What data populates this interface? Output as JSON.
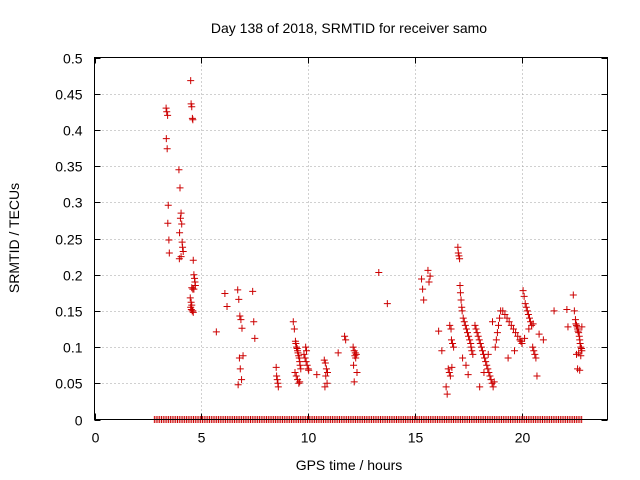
{
  "chart_data": {
    "type": "scatter",
    "title": "Day 138 of 2018, SRMTID for receiver samo",
    "xlabel": "GPS time / hours",
    "ylabel": "SRMTID / TECUs",
    "xlim": [
      0,
      24
    ],
    "ylim": [
      0,
      0.5
    ],
    "x_ticks": [
      0,
      5,
      10,
      15,
      20
    ],
    "x_tick_labels": [
      "0",
      "5",
      "10",
      "15",
      "20"
    ],
    "y_ticks": [
      0,
      0.05,
      0.1,
      0.15,
      0.2,
      0.25,
      0.3,
      0.35,
      0.4,
      0.45,
      0.5
    ],
    "y_tick_labels": [
      "0",
      "0.05",
      "0.1",
      "0.15",
      "0.2",
      "0.25",
      "0.3",
      "0.35",
      "0.4",
      "0.45",
      "0.5"
    ],
    "grid": true,
    "legend": "none",
    "marker": "+",
    "marker_color": "#cc0000",
    "series": [
      {
        "name": "SRMTID",
        "x": [
          3.35,
          3.38,
          3.42,
          3.36,
          3.4,
          3.45,
          3.43,
          3.48,
          3.5,
          3.95,
          4.0,
          4.05,
          4.02,
          4.08,
          3.98,
          4.1,
          4.12,
          4.15,
          3.97,
          4.05,
          4.5,
          4.52,
          4.55,
          4.58,
          4.6,
          4.62,
          4.65,
          4.68,
          4.7,
          4.72,
          4.55,
          4.6,
          4.48,
          4.52,
          4.55,
          4.5,
          4.53,
          4.57,
          4.6,
          4.62,
          4.65,
          5.7,
          6.1,
          6.2,
          6.7,
          6.75,
          6.8,
          6.85,
          6.9,
          6.95,
          6.78,
          6.82,
          6.88,
          6.72,
          7.4,
          7.45,
          7.5,
          8.5,
          8.52,
          8.55,
          8.58,
          8.6,
          9.3,
          9.35,
          9.4,
          9.42,
          9.45,
          9.48,
          9.5,
          9.52,
          9.55,
          9.58,
          9.6,
          9.62,
          9.65,
          9.38,
          9.44,
          9.5,
          9.56,
          9.6,
          9.8,
          9.85,
          9.9,
          9.95,
          10.0,
          10.02,
          9.88,
          9.92,
          10.4,
          10.75,
          10.8,
          10.85,
          10.9,
          10.82,
          10.88,
          10.78,
          11.4,
          11.7,
          11.75,
          12.1,
          12.15,
          12.2,
          12.25,
          12.18,
          12.22,
          12.12,
          12.28,
          12.15,
          13.3,
          13.7,
          15.3,
          15.35,
          15.4,
          15.6,
          15.7,
          15.65,
          16.1,
          16.25,
          16.45,
          16.5,
          16.55,
          16.6,
          16.65,
          16.7,
          16.75,
          16.8,
          16.62,
          16.68,
          16.72,
          17.0,
          17.02,
          17.05,
          17.08,
          17.1,
          17.12,
          17.15,
          17.18,
          17.2,
          17.25,
          17.3,
          17.35,
          17.4,
          17.45,
          17.5,
          17.55,
          17.6,
          17.62,
          17.65,
          17.7,
          17.22,
          17.38,
          17.48,
          17.8,
          17.85,
          17.9,
          17.95,
          18.0,
          18.05,
          18.1,
          18.15,
          18.2,
          18.25,
          18.3,
          18.35,
          18.4,
          18.45,
          18.5,
          18.55,
          18.6,
          18.65,
          18.7,
          18.75,
          18.8,
          18.85,
          18.9,
          18.95,
          19.0,
          18.02,
          18.22,
          18.42,
          18.62,
          19.1,
          19.2,
          19.3,
          19.4,
          19.5,
          19.6,
          19.7,
          19.8,
          19.9,
          20.0,
          20.05,
          20.1,
          20.15,
          20.2,
          20.25,
          20.3,
          20.35,
          20.4,
          20.45,
          20.5,
          20.55,
          20.6,
          20.65,
          20.7,
          20.8,
          19.35,
          19.65,
          19.95,
          20.12,
          20.32,
          20.52,
          21.0,
          21.5,
          22.1,
          22.15,
          22.4,
          22.45,
          22.5,
          22.52,
          22.55,
          22.58,
          22.6,
          22.62,
          22.65,
          22.68,
          22.7,
          22.72,
          22.75,
          22.78,
          22.8,
          22.55,
          22.65,
          22.75,
          22.6,
          22.7,
          22.8
        ],
        "y": [
          0.43,
          0.425,
          0.42,
          0.388,
          0.374,
          0.296,
          0.271,
          0.248,
          0.23,
          0.345,
          0.32,
          0.285,
          0.278,
          0.27,
          0.258,
          0.245,
          0.238,
          0.232,
          0.222,
          0.225,
          0.468,
          0.436,
          0.432,
          0.416,
          0.414,
          0.22,
          0.2,
          0.195,
          0.19,
          0.185,
          0.182,
          0.18,
          0.168,
          0.162,
          0.158,
          0.155,
          0.152,
          0.15,
          0.15,
          0.148,
          0.18,
          0.121,
          0.174,
          0.156,
          0.179,
          0.166,
          0.143,
          0.138,
          0.126,
          0.088,
          0.085,
          0.07,
          0.055,
          0.048,
          0.177,
          0.135,
          0.112,
          0.072,
          0.06,
          0.055,
          0.05,
          0.045,
          0.135,
          0.125,
          0.108,
          0.105,
          0.1,
          0.098,
          0.095,
          0.092,
          0.088,
          0.085,
          0.08,
          0.075,
          0.07,
          0.065,
          0.06,
          0.055,
          0.05,
          0.052,
          0.09,
          0.085,
          0.08,
          0.075,
          0.07,
          0.068,
          0.1,
          0.095,
          0.062,
          0.082,
          0.078,
          0.07,
          0.065,
          0.06,
          0.05,
          0.045,
          0.092,
          0.115,
          0.11,
          0.1,
          0.095,
          0.092,
          0.09,
          0.088,
          0.085,
          0.075,
          0.065,
          0.052,
          0.203,
          0.16,
          0.194,
          0.18,
          0.165,
          0.206,
          0.198,
          0.19,
          0.122,
          0.095,
          0.045,
          0.035,
          0.07,
          0.065,
          0.06,
          0.11,
          0.105,
          0.1,
          0.13,
          0.125,
          0.072,
          0.238,
          0.23,
          0.226,
          0.222,
          0.185,
          0.175,
          0.165,
          0.155,
          0.15,
          0.14,
          0.135,
          0.13,
          0.125,
          0.12,
          0.115,
          0.11,
          0.105,
          0.1,
          0.095,
          0.09,
          0.085,
          0.075,
          0.062,
          0.13,
          0.125,
          0.12,
          0.115,
          0.11,
          0.105,
          0.1,
          0.095,
          0.09,
          0.085,
          0.08,
          0.075,
          0.07,
          0.065,
          0.06,
          0.055,
          0.05,
          0.045,
          0.052,
          0.1,
          0.11,
          0.12,
          0.13,
          0.14,
          0.15,
          0.045,
          0.065,
          0.09,
          0.135,
          0.15,
          0.145,
          0.14,
          0.135,
          0.13,
          0.125,
          0.12,
          0.115,
          0.11,
          0.105,
          0.178,
          0.17,
          0.16,
          0.155,
          0.15,
          0.145,
          0.14,
          0.135,
          0.13,
          0.1,
          0.095,
          0.09,
          0.085,
          0.06,
          0.118,
          0.085,
          0.095,
          0.108,
          0.112,
          0.125,
          0.132,
          0.11,
          0.15,
          0.152,
          0.128,
          0.172,
          0.15,
          0.138,
          0.132,
          0.13,
          0.128,
          0.125,
          0.122,
          0.12,
          0.115,
          0.11,
          0.105,
          0.1,
          0.098,
          0.095,
          0.09,
          0.092,
          0.088,
          0.07,
          0.068,
          0.128
        ],
        "baseline_x": [
          2.8,
          22.8
        ],
        "baseline_y": 0
      }
    ]
  }
}
